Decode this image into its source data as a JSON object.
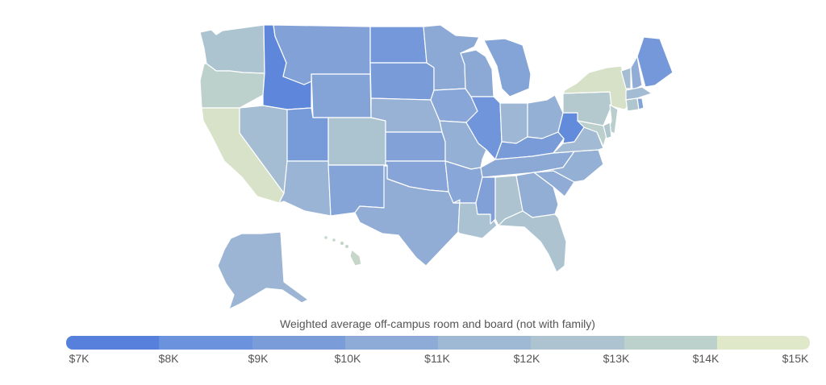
{
  "legend": {
    "title": "Weighted average off-campus room and board (not with family)",
    "ticks": [
      "$7K",
      "$8K",
      "$9K",
      "$10K",
      "$11K",
      "$12K",
      "$13K",
      "$14K",
      "$15K"
    ],
    "colors": [
      "#5680dc",
      "#6b92dc",
      "#7a9cd8",
      "#8eaad6",
      "#9fb8d4",
      "#adc4d0",
      "#bcd0cc",
      "#cddac7",
      "#dfe8c9"
    ]
  },
  "map": {
    "unit": "thousand USD",
    "states": [
      {
        "code": "WA",
        "value": 11.9
      },
      {
        "code": "OR",
        "value": 13.0
      },
      {
        "code": "CA",
        "value": 14.6
      },
      {
        "code": "ID",
        "value": 7.4
      },
      {
        "code": "NV",
        "value": 11.4
      },
      {
        "code": "MT",
        "value": 9.4
      },
      {
        "code": "WY",
        "value": 9.5
      },
      {
        "code": "UT",
        "value": 8.8
      },
      {
        "code": "CO",
        "value": 11.9
      },
      {
        "code": "AZ",
        "value": 10.7
      },
      {
        "code": "NM",
        "value": 9.5
      },
      {
        "code": "ND",
        "value": 8.6
      },
      {
        "code": "SD",
        "value": 8.9
      },
      {
        "code": "NE",
        "value": 10.6
      },
      {
        "code": "KS",
        "value": 9.4
      },
      {
        "code": "OK",
        "value": 9.6
      },
      {
        "code": "TX",
        "value": 10.2
      },
      {
        "code": "MN",
        "value": 9.9
      },
      {
        "code": "IA",
        "value": 9.7
      },
      {
        "code": "MO",
        "value": 10.4
      },
      {
        "code": "AR",
        "value": 9.7
      },
      {
        "code": "LA",
        "value": 11.8
      },
      {
        "code": "WI",
        "value": 9.9
      },
      {
        "code": "IL",
        "value": 8.3
      },
      {
        "code": "MI",
        "value": 9.5
      },
      {
        "code": "IN",
        "value": 10.9
      },
      {
        "code": "OH",
        "value": 10.4
      },
      {
        "code": "KY",
        "value": 8.9
      },
      {
        "code": "TN",
        "value": 9.9
      },
      {
        "code": "MS",
        "value": 9.3
      },
      {
        "code": "AL",
        "value": 12.0
      },
      {
        "code": "GA",
        "value": 10.3
      },
      {
        "code": "FL",
        "value": 12.0
      },
      {
        "code": "SC",
        "value": 10.1
      },
      {
        "code": "NC",
        "value": 10.4
      },
      {
        "code": "VA",
        "value": 11.2
      },
      {
        "code": "WV",
        "value": 7.6
      },
      {
        "code": "PA",
        "value": 12.4
      },
      {
        "code": "NY",
        "value": 14.5
      },
      {
        "code": "NJ",
        "value": 12.8
      },
      {
        "code": "MD",
        "value": 12.9
      },
      {
        "code": "DE",
        "value": 12.2
      },
      {
        "code": "VT",
        "value": 11.4
      },
      {
        "code": "NH",
        "value": 10.2
      },
      {
        "code": "ME",
        "value": 8.6
      },
      {
        "code": "MA",
        "value": 11.3
      },
      {
        "code": "CT",
        "value": 12.2
      },
      {
        "code": "RI",
        "value": 9.5
      },
      {
        "code": "AK",
        "value": 10.8
      },
      {
        "code": "HI",
        "value": 13.6
      }
    ]
  }
}
